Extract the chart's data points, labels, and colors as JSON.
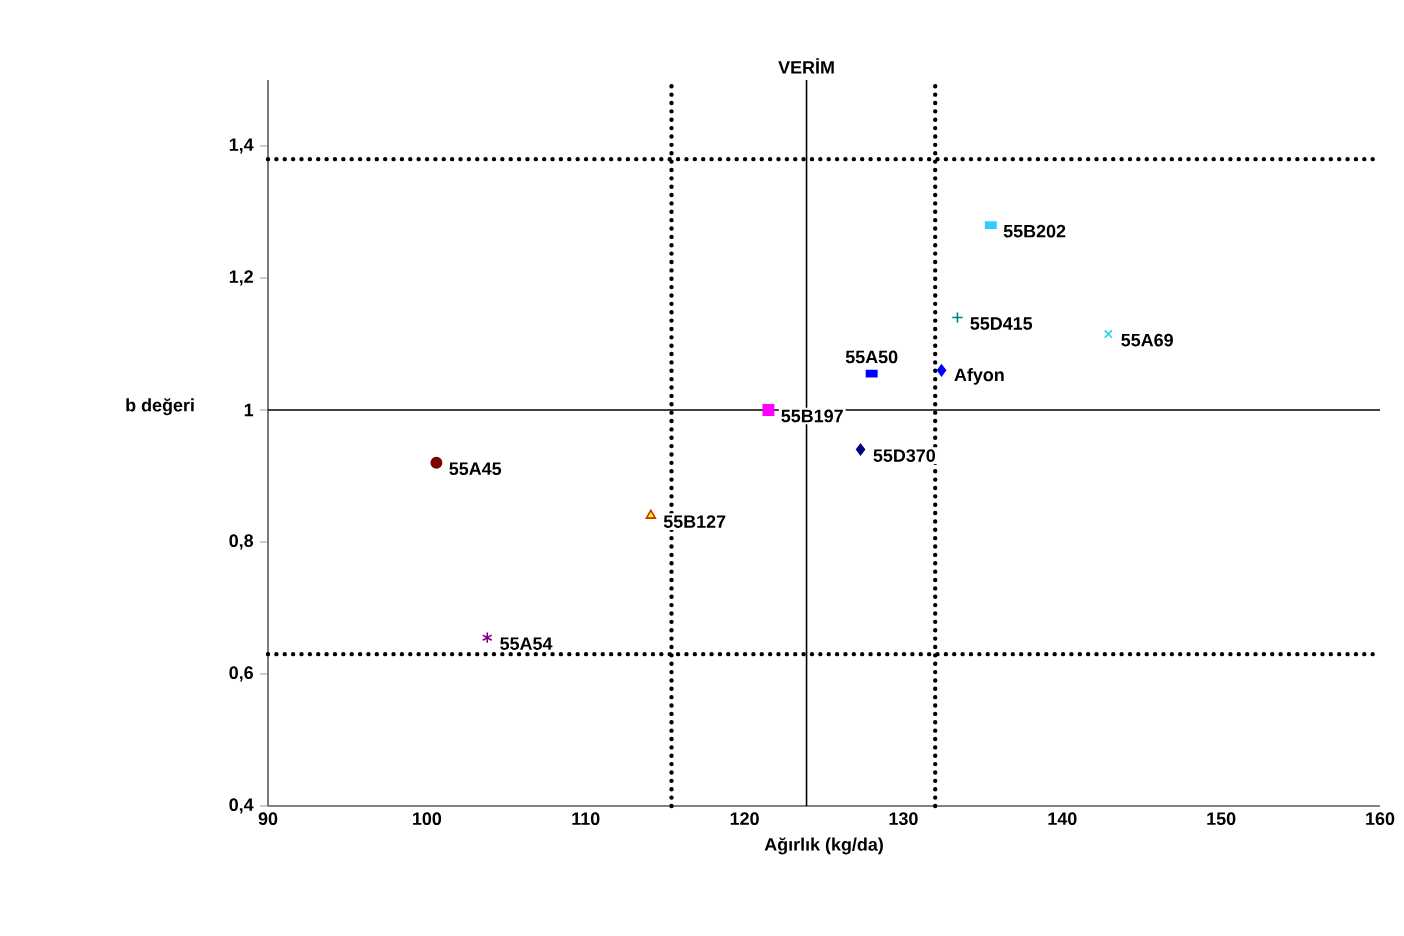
{
  "chart_data": {
    "type": "scatter",
    "xlabel": "Ağırlık (kg/da)",
    "ylabel": "b değeri",
    "xlim": [
      90,
      160
    ],
    "xticks": [
      90,
      100,
      110,
      120,
      130,
      140,
      150,
      160
    ],
    "ylim": [
      0.4,
      1.5
    ],
    "yticks": [
      {
        "value": 0.4,
        "label": "0,4"
      },
      {
        "value": 0.6,
        "label": "0,6"
      },
      {
        "value": 0.8,
        "label": "0,8"
      },
      1,
      {
        "value": 1.2,
        "label": "1,2"
      },
      {
        "value": 1.4,
        "label": "1,4"
      }
    ],
    "ref_lines": [
      {
        "axis": "x",
        "value": 123.9,
        "label": "VERİM",
        "line_style": "solid"
      },
      {
        "axis": "x",
        "value": 115.4,
        "line_style": "dotted"
      },
      {
        "axis": "x",
        "value": 132,
        "line_style": "dotted"
      },
      {
        "axis": "y",
        "value": 1,
        "line_style": "solid"
      },
      {
        "axis": "y",
        "value": 1.38,
        "line_style": "dotted"
      },
      {
        "axis": "y",
        "value": 0.63,
        "line_style": "dotted"
      }
    ],
    "series": [
      {
        "name": "55A45",
        "color": "#800000",
        "marker": "circle",
        "x": [
          100.6
        ],
        "values": [
          0.92
        ]
      },
      {
        "name": "55B127",
        "color": "#cc3300",
        "marker": "triangle",
        "x": [
          114.1
        ],
        "values": [
          0.84
        ]
      },
      {
        "name": "55A54",
        "color": "#800080",
        "marker": "cross",
        "x": [
          103.8
        ],
        "values": [
          0.655
        ]
      },
      {
        "name": "55B197",
        "color": "#ff00ff",
        "marker": "square",
        "x": [
          121.5
        ],
        "values": [
          1.0
        ]
      },
      {
        "name": "55D370",
        "color": "#000080",
        "marker": "diamond",
        "x": [
          127.3
        ],
        "values": [
          0.94
        ]
      },
      {
        "name": "55A50",
        "color": "#0000ff",
        "marker": "square",
        "x": [
          128
        ],
        "values": [
          1.055
        ]
      },
      {
        "name": "Afyon",
        "color": "#0000ff",
        "marker": "diamond",
        "x": [
          132.4
        ],
        "values": [
          1.06
        ]
      },
      {
        "name": "55D415",
        "color": "#008080",
        "marker": "plus",
        "x": [
          133.4
        ],
        "values": [
          1.14
        ]
      },
      {
        "name": "55A69",
        "color": "#22d3e6",
        "marker": "cross",
        "x": [
          142.9
        ],
        "values": [
          1.115
        ]
      },
      {
        "name": "55B202",
        "color": "#33ccff",
        "marker": "square",
        "x": [
          135.5
        ],
        "values": [
          1.28
        ]
      }
    ]
  }
}
